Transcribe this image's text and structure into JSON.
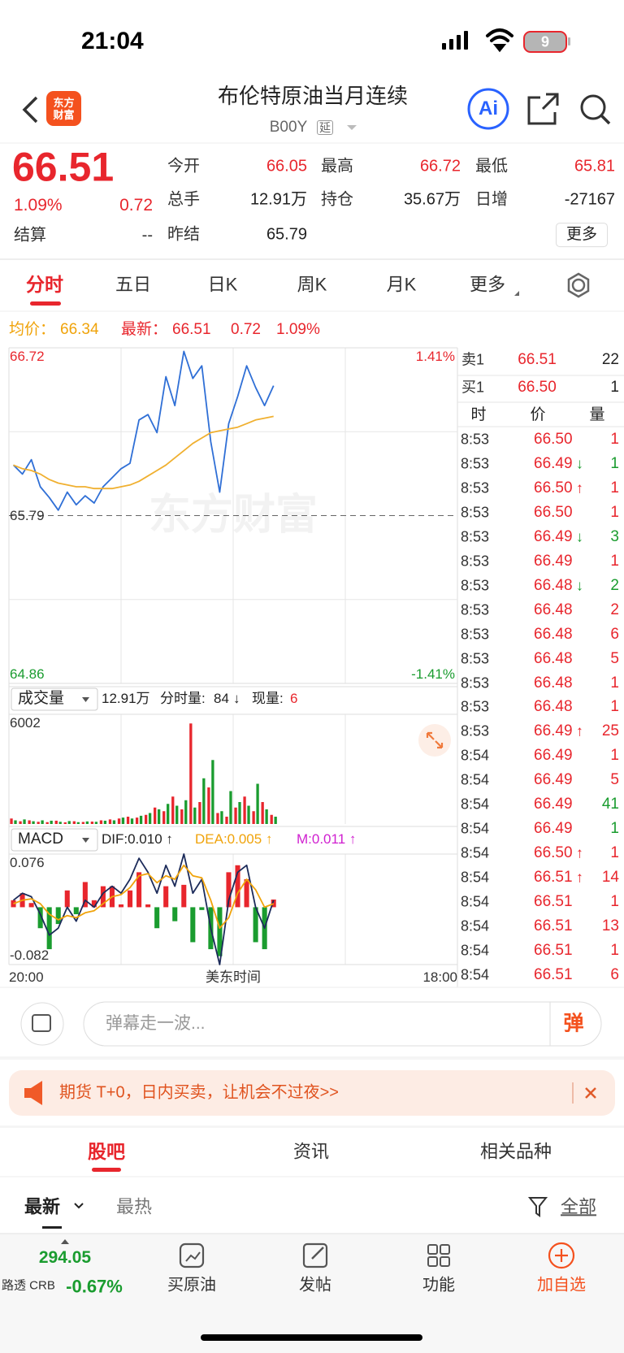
{
  "status": {
    "time": "21:04",
    "battery": "9"
  },
  "header": {
    "logo": "东方财富",
    "title": "布伦特原油当月连续",
    "code": "B00Y",
    "tag": "延",
    "ai": "Ai"
  },
  "quote": {
    "price": "66.51",
    "pct": "1.09%",
    "change": "0.72",
    "settle_label": "结算",
    "settle": "--",
    "fields": [
      {
        "label": "今开",
        "value": "66.05"
      },
      {
        "label": "最高",
        "value": "66.72"
      },
      {
        "label": "最低",
        "value": "65.81"
      },
      {
        "label": "总手",
        "value": "12.91万"
      },
      {
        "label": "持仓",
        "value": "35.67万"
      },
      {
        "label": "日增",
        "value": "-27167"
      },
      {
        "label": "昨结",
        "value": "65.79"
      }
    ],
    "more": "更多"
  },
  "tabs": [
    "分时",
    "五日",
    "日K",
    "周K",
    "月K",
    "更多"
  ],
  "intraday": {
    "avg_label": "均价：",
    "avg": "66.34",
    "last_label": "最新：",
    "last": "66.51",
    "change": "0.72",
    "pct": "1.09%",
    "watermark": "东方财富",
    "volume_label": "成交量",
    "volume_total": "12.91万",
    "minute_label": "分时量:",
    "minute": "84",
    "minute_arrow": "↓",
    "current_label": "现量:",
    "current": "6",
    "macd_label": "MACD",
    "dif": "DIF:0.010 ↑",
    "dea": "DEA:0.005 ↑",
    "m": "M:0.011 ↑"
  },
  "chart_data": [
    {
      "type": "line",
      "ylim": [
        64.86,
        66.72
      ],
      "yticks": [
        66.72,
        65.79,
        64.86
      ],
      "y2lim": [
        -1.41,
        1.41
      ],
      "y2ticks": [
        {
          "value": 1.41,
          "label": "1.41%"
        },
        {
          "value": -1.41,
          "label": "-1.41%"
        }
      ],
      "series": [
        {
          "color": "#2f6fd6",
          "values": [
            66.07,
            66.02,
            66.1,
            65.95,
            65.89,
            65.82,
            65.92,
            65.85,
            65.9,
            65.86,
            65.95,
            66.0,
            66.05,
            66.08,
            66.32,
            66.35,
            66.25,
            66.56,
            66.4,
            66.7,
            66.55,
            66.62,
            66.2,
            65.92,
            66.3,
            66.45,
            66.62,
            66.5,
            66.4,
            66.51,
            null,
            null,
            null,
            null,
            null,
            null,
            null,
            null,
            null,
            null,
            null,
            null,
            null,
            null,
            null,
            null,
            null,
            null,
            null,
            null
          ]
        },
        {
          "color": "#f0b030",
          "values": [
            66.07,
            66.05,
            66.04,
            66.02,
            65.99,
            65.97,
            65.96,
            65.95,
            65.95,
            65.94,
            65.94,
            65.94,
            65.95,
            65.96,
            65.98,
            66.01,
            66.04,
            66.07,
            66.11,
            66.15,
            66.19,
            66.22,
            66.25,
            66.26,
            66.27,
            66.28,
            66.3,
            66.32,
            66.33,
            66.34,
            null,
            null,
            null,
            null,
            null,
            null,
            null,
            null,
            null,
            null,
            null,
            null,
            null,
            null,
            null,
            null,
            null,
            null,
            null,
            null
          ]
        }
      ]
    },
    {
      "type": "bar",
      "ylim": [
        0,
        6002
      ],
      "yticks": [
        6002
      ],
      "series": [
        {
          "color": "#e8262d",
          "values": [
            300,
            150,
            200,
            120,
            100,
            180,
            90,
            150,
            110,
            130,
            200,
            250,
            300,
            400,
            350,
            500,
            900,
            700,
            1500,
            800,
            5500,
            1200,
            2000,
            600,
            400,
            900,
            1500,
            700,
            1200,
            500,
            null,
            null,
            null,
            null,
            null,
            null,
            null,
            null,
            null,
            null,
            null,
            null,
            null,
            null,
            null,
            null,
            null,
            null,
            null,
            null
          ]
        },
        {
          "color": "#1a9c2f",
          "values": [
            200,
            250,
            150,
            200,
            180,
            120,
            160,
            100,
            140,
            120,
            180,
            200,
            350,
            300,
            450,
            600,
            800,
            1100,
            1000,
            1300,
            900,
            2500,
            3500,
            700,
            1800,
            1200,
            1000,
            2200,
            800,
            400,
            null,
            null,
            null,
            null,
            null,
            null,
            null,
            null,
            null,
            null,
            null,
            null,
            null,
            null,
            null,
            null,
            null,
            null,
            null,
            null
          ]
        }
      ]
    },
    {
      "type": "combo",
      "ylim": [
        -0.082,
        0.076
      ],
      "yticks": [
        0.076,
        -0.082
      ],
      "x_start": "20:00",
      "xlabel": "美东时间",
      "x_end": "18:00",
      "series": [
        {
          "kind": "bar",
          "colors": [
            "#e8262d",
            "#1a9c2f"
          ],
          "values": [
            0.01,
            0.02,
            0.006,
            -0.03,
            -0.06,
            -0.024,
            0.024,
            -0.01,
            0.036,
            0.01,
            0.03,
            0.03,
            0.004,
            0.024,
            0.05,
            0.004,
            -0.03,
            0.03,
            -0.02,
            0.032,
            -0.05,
            -0.004,
            -0.06,
            -0.07,
            0.05,
            0.06,
            0.04,
            -0.05,
            -0.06,
            0.011,
            null,
            null,
            null,
            null,
            null,
            null,
            null,
            null,
            null,
            null,
            null,
            null,
            null,
            null,
            null,
            null,
            null,
            null,
            null,
            null
          ]
        },
        {
          "color": "#1c2b5a",
          "values": [
            0.01,
            0.02,
            0.015,
            -0.01,
            -0.04,
            -0.03,
            0.0,
            -0.02,
            0.01,
            0.0,
            0.02,
            0.03,
            0.02,
            0.04,
            0.07,
            0.05,
            0.02,
            0.06,
            0.03,
            0.076,
            0.02,
            0.04,
            -0.03,
            -0.082,
            0.01,
            0.05,
            0.06,
            0.0,
            -0.03,
            0.01,
            null,
            null,
            null,
            null,
            null,
            null,
            null,
            null,
            null,
            null,
            null,
            null,
            null,
            null,
            null,
            null,
            null,
            null,
            null,
            null
          ]
        },
        {
          "color": "#f0a30a",
          "values": [
            0.005,
            0.01,
            0.012,
            0.005,
            -0.01,
            -0.018,
            -0.012,
            -0.015,
            -0.008,
            -0.005,
            0.005,
            0.015,
            0.018,
            0.028,
            0.045,
            0.048,
            0.035,
            0.045,
            0.04,
            0.06,
            0.045,
            0.042,
            0.01,
            -0.03,
            -0.015,
            0.02,
            0.04,
            0.025,
            0.0,
            0.005,
            null,
            null,
            null,
            null,
            null,
            null,
            null,
            null,
            null,
            null,
            null,
            null,
            null,
            null,
            null,
            null,
            null,
            null,
            null,
            null
          ]
        }
      ]
    }
  ],
  "order_book": {
    "ask_label": "卖1",
    "ask": "66.51",
    "ask_qty": "22",
    "bid_label": "买1",
    "bid": "66.50",
    "bid_qty": "1",
    "columns": [
      "时",
      "价",
      "量"
    ]
  },
  "trades": [
    {
      "time": "8:53",
      "price": "66.50",
      "qty": "1",
      "side": "up"
    },
    {
      "time": "8:53",
      "price": "66.49",
      "arrow": "↓",
      "qty": "1",
      "side": "down"
    },
    {
      "time": "8:53",
      "price": "66.50",
      "arrow": "↑",
      "qty": "1",
      "side": "up"
    },
    {
      "time": "8:53",
      "price": "66.50",
      "qty": "1",
      "side": "up"
    },
    {
      "time": "8:53",
      "price": "66.49",
      "arrow": "↓",
      "qty": "3",
      "side": "down"
    },
    {
      "time": "8:53",
      "price": "66.49",
      "qty": "1",
      "side": "up"
    },
    {
      "time": "8:53",
      "price": "66.48",
      "arrow": "↓",
      "qty": "2",
      "side": "down"
    },
    {
      "time": "8:53",
      "price": "66.48",
      "qty": "2",
      "side": "up"
    },
    {
      "time": "8:53",
      "price": "66.48",
      "qty": "6",
      "side": "up"
    },
    {
      "time": "8:53",
      "price": "66.48",
      "qty": "5",
      "side": "up"
    },
    {
      "time": "8:53",
      "price": "66.48",
      "qty": "1",
      "side": "up"
    },
    {
      "time": "8:53",
      "price": "66.48",
      "qty": "1",
      "side": "up"
    },
    {
      "time": "8:53",
      "price": "66.49",
      "arrow": "↑",
      "qty": "25",
      "side": "up"
    },
    {
      "time": "8:54",
      "price": "66.49",
      "qty": "1",
      "side": "up"
    },
    {
      "time": "8:54",
      "price": "66.49",
      "qty": "5",
      "side": "up"
    },
    {
      "time": "8:54",
      "price": "66.49",
      "qty": "41",
      "side": "down"
    },
    {
      "time": "8:54",
      "price": "66.49",
      "qty": "1",
      "side": "down"
    },
    {
      "time": "8:54",
      "price": "66.50",
      "arrow": "↑",
      "qty": "1",
      "side": "up"
    },
    {
      "time": "8:54",
      "price": "66.51",
      "arrow": "↑",
      "qty": "14",
      "side": "up"
    },
    {
      "time": "8:54",
      "price": "66.51",
      "qty": "1",
      "side": "up"
    },
    {
      "time": "8:54",
      "price": "66.51",
      "qty": "13",
      "side": "up"
    },
    {
      "time": "8:54",
      "price": "66.51",
      "qty": "1",
      "side": "up"
    },
    {
      "time": "8:54",
      "price": "66.51",
      "qty": "6",
      "side": "up"
    }
  ],
  "comment": {
    "placeholder": "弹幕走一波...",
    "button": "弹"
  },
  "banner": {
    "text": "期货 T+0，日内买卖，让机会不过夜>>"
  },
  "sections": [
    "股吧",
    "资讯",
    "相关品种"
  ],
  "sort": {
    "options": [
      "最新",
      "最热"
    ],
    "filter": "全部"
  },
  "bottom": {
    "index_value": "294.05",
    "index_name": "路透 CRB",
    "index_change": "-0.67%",
    "items": [
      "买原油",
      "发帖",
      "功能",
      "加自选"
    ]
  }
}
